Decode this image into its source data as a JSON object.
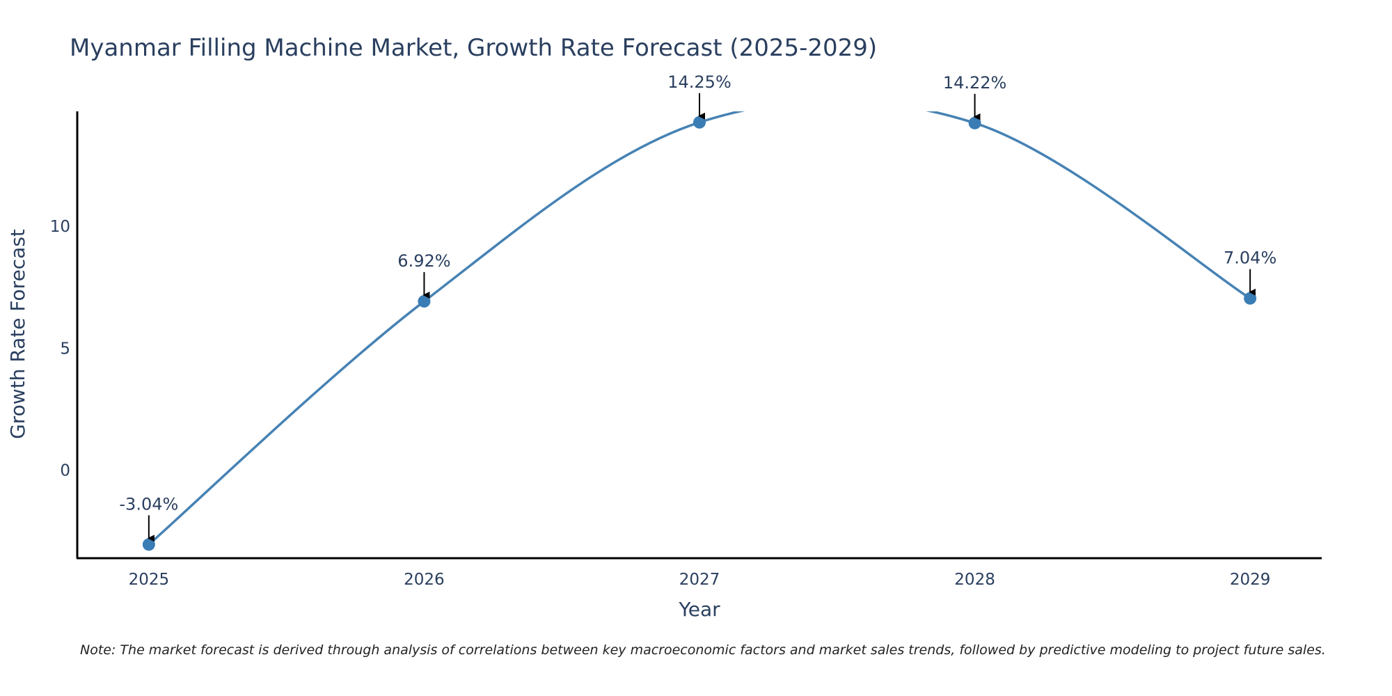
{
  "chart_data": {
    "type": "line",
    "title": "Myanmar Filling Machine Market, Growth Rate Forecast (2025-2029)",
    "xlabel": "Year",
    "ylabel": "Growth Rate Forecast",
    "categories": [
      "2025",
      "2026",
      "2027",
      "2028",
      "2029"
    ],
    "values": [
      -3.04,
      6.92,
      14.25,
      14.22,
      7.04
    ],
    "labels": [
      "-3.04%",
      "6.92%",
      "14.25%",
      "14.22%",
      "7.04%"
    ],
    "yticks": [
      0,
      5,
      10
    ],
    "ylim": [
      -3.6,
      14.7
    ],
    "xlim": [
      -0.26,
      4.26
    ],
    "line_color": "#4682b4",
    "marker_color": "#3a7db5",
    "grid": false,
    "note": "Note: The market forecast is derived through analysis of correlations between key macroeconomic factors and market sales trends, followed by predictive modeling to project future sales."
  }
}
